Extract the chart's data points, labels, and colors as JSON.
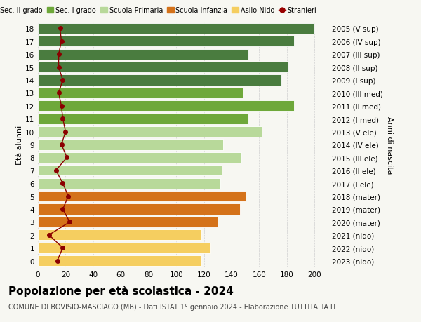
{
  "ages": [
    18,
    17,
    16,
    15,
    14,
    13,
    12,
    11,
    10,
    9,
    8,
    7,
    6,
    5,
    4,
    3,
    2,
    1,
    0
  ],
  "right_labels": [
    "2005 (V sup)",
    "2006 (IV sup)",
    "2007 (III sup)",
    "2008 (II sup)",
    "2009 (I sup)",
    "2010 (III med)",
    "2011 (II med)",
    "2012 (I med)",
    "2013 (V ele)",
    "2014 (IV ele)",
    "2015 (III ele)",
    "2016 (II ele)",
    "2017 (I ele)",
    "2018 (mater)",
    "2019 (mater)",
    "2020 (mater)",
    "2021 (nido)",
    "2022 (nido)",
    "2023 (nido)"
  ],
  "bar_values": [
    200,
    185,
    152,
    181,
    176,
    148,
    185,
    152,
    162,
    134,
    147,
    133,
    132,
    150,
    146,
    130,
    118,
    125,
    118
  ],
  "bar_colors": [
    "#4a7c3f",
    "#4a7c3f",
    "#4a7c3f",
    "#4a7c3f",
    "#4a7c3f",
    "#6ea83a",
    "#6ea83a",
    "#6ea83a",
    "#b8d99a",
    "#b8d99a",
    "#b8d99a",
    "#b8d99a",
    "#b8d99a",
    "#d4721a",
    "#d4721a",
    "#d4721a",
    "#f5ce60",
    "#f5ce60",
    "#f5ce60"
  ],
  "stranieri_values": [
    16,
    17,
    15,
    15,
    18,
    15,
    17,
    18,
    20,
    17,
    21,
    13,
    18,
    22,
    18,
    23,
    8,
    18,
    14
  ],
  "xlim": [
    0,
    210
  ],
  "ylabel_left": "Età alunni",
  "ylabel_right": "Anni di nascita",
  "title": "Popolazione per età scolastica - 2024",
  "subtitle": "COMUNE DI BOVISIO-MASCIAGO (MB) - Dati ISTAT 1° gennaio 2024 - Elaborazione TUTTITALIA.IT",
  "legend_items": [
    {
      "label": "Sec. II grado",
      "color": "#4a7c3f"
    },
    {
      "label": "Sec. I grado",
      "color": "#6ea83a"
    },
    {
      "label": "Scuola Primaria",
      "color": "#b8d99a"
    },
    {
      "label": "Scuola Infanzia",
      "color": "#d4721a"
    },
    {
      "label": "Asilo Nido",
      "color": "#f5ce60"
    },
    {
      "label": "Stranieri",
      "color": "#990000"
    }
  ],
  "background_color": "#f7f7f2",
  "grid_color": "#d0d0d0",
  "title_fontsize": 11,
  "subtitle_fontsize": 7,
  "axis_fontsize": 8,
  "tick_fontsize": 7.5,
  "legend_fontsize": 7
}
